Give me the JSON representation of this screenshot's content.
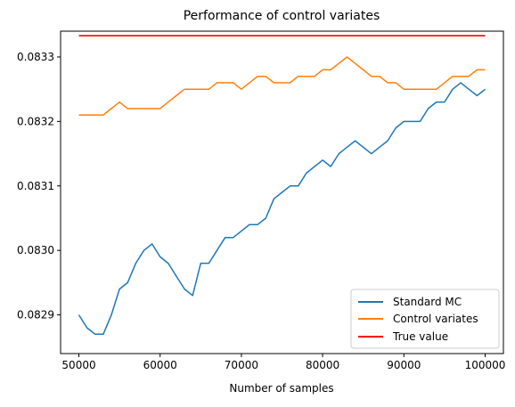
{
  "chart_data": {
    "type": "line",
    "title": "Performance of control variates",
    "xlabel": "Number of samples",
    "ylabel": "",
    "xlim": [
      47750,
      102250
    ],
    "ylim": [
      0.08284,
      0.08334
    ],
    "xticks": [
      50000,
      60000,
      70000,
      80000,
      90000,
      100000
    ],
    "xtick_labels": [
      "50000",
      "60000",
      "70000",
      "80000",
      "90000",
      "100000"
    ],
    "yticks": [
      0.0829,
      0.083,
      0.0831,
      0.0832,
      0.0833
    ],
    "ytick_labels": [
      "0.0829",
      "0.0830",
      "0.0831",
      "0.0832",
      "0.0833"
    ],
    "grid": false,
    "legend_position": "lower-right",
    "series": [
      {
        "name": "Standard MC",
        "color": "#1f77b4",
        "x": [
          50000,
          51000,
          52000,
          53000,
          54000,
          55000,
          56000,
          57000,
          58000,
          59000,
          60000,
          61000,
          62000,
          63000,
          64000,
          65000,
          66000,
          67000,
          68000,
          69000,
          70000,
          71000,
          72000,
          73000,
          74000,
          75000,
          76000,
          77000,
          78000,
          79000,
          80000,
          81000,
          82000,
          83000,
          84000,
          85000,
          86000,
          87000,
          88000,
          89000,
          90000,
          91000,
          92000,
          93000,
          94000,
          95000,
          96000,
          97000,
          98000,
          99000,
          100000
        ],
        "y": [
          0.0829,
          0.08288,
          0.08287,
          0.08287,
          0.0829,
          0.08294,
          0.08295,
          0.08298,
          0.083,
          0.08301,
          0.08299,
          0.08298,
          0.08296,
          0.08294,
          0.08293,
          0.08298,
          0.08298,
          0.083,
          0.08302,
          0.08302,
          0.08303,
          0.08304,
          0.08304,
          0.08305,
          0.08308,
          0.08309,
          0.0831,
          0.0831,
          0.08312,
          0.08313,
          0.08314,
          0.08313,
          0.08315,
          0.08316,
          0.08317,
          0.08316,
          0.08315,
          0.08316,
          0.08317,
          0.08319,
          0.0832,
          0.0832,
          0.0832,
          0.08322,
          0.08323,
          0.08323,
          0.08325,
          0.08326,
          0.08325,
          0.08324,
          0.08325
        ]
      },
      {
        "name": "Control variates",
        "color": "#ff7f0e",
        "x": [
          50000,
          51000,
          52000,
          53000,
          54000,
          55000,
          56000,
          57000,
          58000,
          59000,
          60000,
          61000,
          62000,
          63000,
          64000,
          65000,
          66000,
          67000,
          68000,
          69000,
          70000,
          71000,
          72000,
          73000,
          74000,
          75000,
          76000,
          77000,
          78000,
          79000,
          80000,
          81000,
          82000,
          83000,
          84000,
          85000,
          86000,
          87000,
          88000,
          89000,
          90000,
          91000,
          92000,
          93000,
          94000,
          95000,
          96000,
          97000,
          98000,
          99000,
          100000
        ],
        "y": [
          0.08321,
          0.08321,
          0.08321,
          0.08321,
          0.08322,
          0.08323,
          0.08322,
          0.08322,
          0.08322,
          0.08322,
          0.08322,
          0.08323,
          0.08324,
          0.08325,
          0.08325,
          0.08325,
          0.08325,
          0.08326,
          0.08326,
          0.08326,
          0.08325,
          0.08326,
          0.08327,
          0.08327,
          0.08326,
          0.08326,
          0.08326,
          0.08327,
          0.08327,
          0.08327,
          0.08328,
          0.08328,
          0.08329,
          0.0833,
          0.08329,
          0.08328,
          0.08327,
          0.08327,
          0.08326,
          0.08326,
          0.08325,
          0.08325,
          0.08325,
          0.08325,
          0.08325,
          0.08326,
          0.08327,
          0.08327,
          0.08327,
          0.08328,
          0.08328
        ]
      },
      {
        "name": "True value",
        "color": "#ff0000",
        "x": [
          50000,
          100000
        ],
        "y": [
          0.083333,
          0.083333
        ]
      }
    ]
  }
}
